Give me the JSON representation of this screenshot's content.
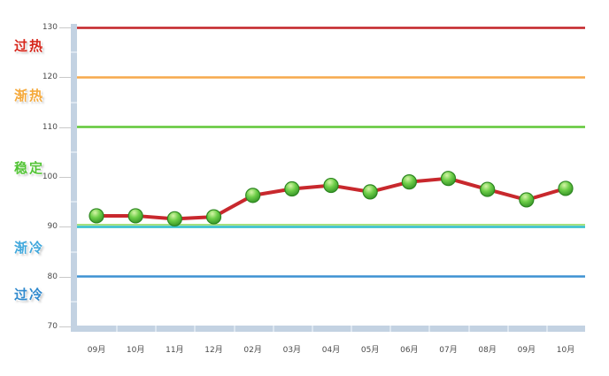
{
  "chart_data": {
    "type": "line",
    "categories": [
      "09月",
      "10月",
      "11月",
      "12月",
      "02月",
      "03月",
      "04月",
      "05月",
      "06月",
      "07月",
      "08月",
      "09月",
      "10月"
    ],
    "values": [
      92.2,
      92.2,
      91.6,
      92.0,
      96.3,
      97.6,
      98.3,
      97.0,
      99.0,
      99.7,
      97.5,
      95.4,
      97.7
    ],
    "title": "",
    "xlabel": "",
    "ylabel": "",
    "ylim": [
      70,
      130
    ],
    "yticks": [
      70,
      80,
      90,
      100,
      110,
      120,
      130
    ],
    "y_minor_step": 5,
    "legend": "none",
    "grid": "zone threshold lines only",
    "zones": [
      {
        "label": "过热",
        "color": "#D6261B",
        "label_at": 126.5
      },
      {
        "label": "渐热",
        "color": "#F5A93B",
        "label_at": 116.5
      },
      {
        "label": "稳定",
        "color": "#53C436",
        "label_at": 102
      },
      {
        "label": "渐冷",
        "color": "#41A8DC",
        "label_at": 86
      },
      {
        "label": "过冷",
        "color": "#2F89CD",
        "label_at": 76.5
      }
    ],
    "zone_lines": [
      {
        "value": 130,
        "color": "#C32428",
        "edge": "#DF8A8C"
      },
      {
        "value": 120,
        "color": "#F7A94E",
        "edge": "#FBD29A"
      },
      {
        "value": 110,
        "color": "#5FC63C",
        "edge": "#AEE48B"
      },
      {
        "value": 90,
        "color": "#2FBDC9",
        "edge": "#8FDDE4",
        "top_stripe": "#A5E07E"
      },
      {
        "value": 80,
        "color": "#3D92D2",
        "edge": "#9CC6E8"
      }
    ],
    "series_color": "#C8282D",
    "marker": {
      "fill_top": "#D6F5A8",
      "fill_mid": "#6DCE48",
      "fill_dark": "#2E8B23",
      "border": "#2C861F"
    },
    "axis_bar_color": "#C3D2E2",
    "tick_mark_color": "#C9C9C9",
    "tick_text_color": "#4A4A4A"
  }
}
